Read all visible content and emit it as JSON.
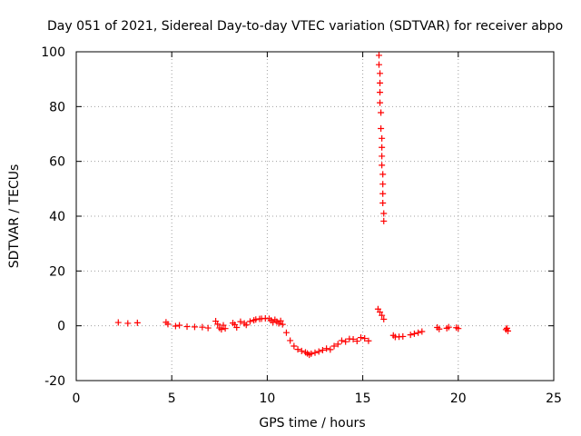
{
  "chart_data": {
    "type": "scatter",
    "title": "Day 051 of 2021, Sidereal Day-to-day VTEC variation (SDTVAR) for receiver abpo",
    "xlabel": "GPS time / hours",
    "ylabel": "SDTVAR / TECUs",
    "xlim": [
      0,
      25
    ],
    "ylim": [
      -20,
      100
    ],
    "xticks": [
      0,
      5,
      10,
      15,
      20,
      25
    ],
    "yticks": [
      -20,
      0,
      20,
      40,
      60,
      80,
      100
    ],
    "grid": true,
    "marker": "+",
    "marker_color": "#ff0000",
    "series": [
      {
        "name": "SDTVAR",
        "points": [
          [
            2.2,
            1.2
          ],
          [
            2.7,
            0.9
          ],
          [
            3.2,
            1.1
          ],
          [
            4.7,
            1.3
          ],
          [
            4.8,
            0.6
          ],
          [
            5.2,
            -0.1
          ],
          [
            5.4,
            0.2
          ],
          [
            5.8,
            -0.3
          ],
          [
            6.2,
            -0.4
          ],
          [
            6.6,
            -0.5
          ],
          [
            6.9,
            -0.8
          ],
          [
            7.3,
            1.7
          ],
          [
            7.4,
            0.6
          ],
          [
            7.5,
            -0.8
          ],
          [
            7.6,
            -1.3
          ],
          [
            7.7,
            0.2
          ],
          [
            7.8,
            -1.0
          ],
          [
            8.2,
            1.0
          ],
          [
            8.3,
            0.4
          ],
          [
            8.4,
            -0.6
          ],
          [
            8.6,
            1.5
          ],
          [
            8.8,
            0.9
          ],
          [
            8.9,
            0.3
          ],
          [
            9.1,
            1.6
          ],
          [
            9.3,
            2.0
          ],
          [
            9.4,
            2.3
          ],
          [
            9.6,
            2.5
          ],
          [
            9.7,
            2.6
          ],
          [
            9.9,
            2.7
          ],
          [
            10.1,
            2.6
          ],
          [
            10.2,
            2.0
          ],
          [
            10.3,
            1.3
          ],
          [
            10.4,
            2.2
          ],
          [
            10.5,
            1.5
          ],
          [
            10.6,
            0.9
          ],
          [
            10.7,
            1.8
          ],
          [
            10.8,
            0.5
          ],
          [
            11.0,
            -2.5
          ],
          [
            11.2,
            -5.4
          ],
          [
            11.4,
            -7.4
          ],
          [
            11.6,
            -8.6
          ],
          [
            11.8,
            -9.2
          ],
          [
            12.0,
            -9.7
          ],
          [
            12.1,
            -10.1
          ],
          [
            12.2,
            -10.6
          ],
          [
            12.3,
            -10.2
          ],
          [
            12.5,
            -9.8
          ],
          [
            12.7,
            -9.4
          ],
          [
            12.9,
            -8.9
          ],
          [
            13.1,
            -8.3
          ],
          [
            13.3,
            -8.7
          ],
          [
            13.5,
            -7.4
          ],
          [
            13.7,
            -6.7
          ],
          [
            13.9,
            -5.4
          ],
          [
            14.1,
            -5.8
          ],
          [
            14.3,
            -4.8
          ],
          [
            14.5,
            -4.9
          ],
          [
            14.7,
            -5.6
          ],
          [
            14.9,
            -4.3
          ],
          [
            15.1,
            -4.6
          ],
          [
            15.3,
            -5.5
          ],
          [
            15.8,
            6.1
          ],
          [
            15.9,
            5.0
          ],
          [
            16.0,
            3.8
          ],
          [
            16.1,
            2.4
          ],
          [
            16.1,
            38.2
          ],
          [
            16.1,
            41.0
          ],
          [
            16.05,
            44.8
          ],
          [
            16.05,
            48.2
          ],
          [
            16.05,
            51.7
          ],
          [
            16.05,
            55.3
          ],
          [
            16.0,
            58.6
          ],
          [
            16.0,
            61.9
          ],
          [
            16.0,
            65.1
          ],
          [
            16.0,
            68.4
          ],
          [
            15.95,
            72.0
          ],
          [
            15.95,
            77.8
          ],
          [
            15.9,
            81.4
          ],
          [
            15.9,
            85.2
          ],
          [
            15.9,
            88.6
          ],
          [
            15.9,
            92.1
          ],
          [
            15.85,
            95.3
          ],
          [
            15.85,
            98.7
          ],
          [
            16.6,
            -3.5
          ],
          [
            16.7,
            -4.1
          ],
          [
            16.9,
            -4.0
          ],
          [
            17.1,
            -3.9
          ],
          [
            17.5,
            -3.3
          ],
          [
            17.7,
            -2.9
          ],
          [
            17.9,
            -2.5
          ],
          [
            18.1,
            -2.1
          ],
          [
            18.9,
            -0.6
          ],
          [
            19.0,
            -1.2
          ],
          [
            19.4,
            -0.9
          ],
          [
            19.5,
            -0.5
          ],
          [
            19.9,
            -0.7
          ],
          [
            20.0,
            -1.0
          ],
          [
            22.5,
            -1.4
          ],
          [
            22.55,
            -0.9
          ],
          [
            22.6,
            -1.9
          ]
        ]
      }
    ]
  }
}
